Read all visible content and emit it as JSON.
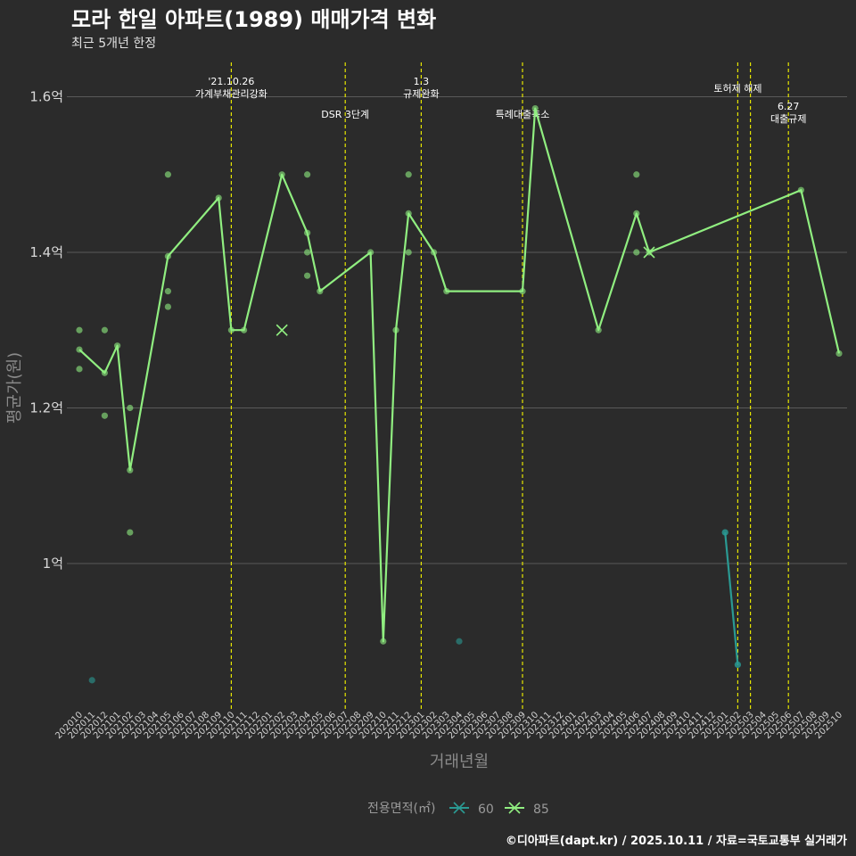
{
  "chart_data": {
    "type": "line",
    "title": "모라 한일 아파트(1989) 매매가격 변화",
    "subtitle": "최근 5개년 한정",
    "xlabel": "거래년월",
    "ylabel": "평균가(원)",
    "caption": "©디아파트(dapt.kr) / 2025.10.11 / 자료=국토교통부 실거래가",
    "ylim": [
      0.815,
      1.64
    ],
    "yticks": [
      {
        "value": 1.0,
        "label": "1억"
      },
      {
        "value": 1.2,
        "label": "1.2억"
      },
      {
        "value": 1.4,
        "label": "1.4억"
      },
      {
        "value": 1.6,
        "label": "1.6억"
      }
    ],
    "categories": [
      "202010",
      "202011",
      "202012",
      "202101",
      "202102",
      "202103",
      "202104",
      "202105",
      "202106",
      "202107",
      "202108",
      "202109",
      "202110",
      "202111",
      "202112",
      "202201",
      "202202",
      "202203",
      "202204",
      "202205",
      "202206",
      "202207",
      "202208",
      "202209",
      "202210",
      "202211",
      "202212",
      "202301",
      "202302",
      "202303",
      "202304",
      "202305",
      "202306",
      "202307",
      "202308",
      "202309",
      "202310",
      "202311",
      "202312",
      "202401",
      "202402",
      "202403",
      "202404",
      "202405",
      "202406",
      "202407",
      "202408",
      "202409",
      "202410",
      "202411",
      "202412",
      "202501",
      "202502",
      "202503",
      "202504",
      "202505",
      "202506",
      "202507",
      "202508",
      "202509",
      "202510"
    ],
    "legend": {
      "title": "전용면적(㎡)",
      "entries": [
        "60",
        "85"
      ]
    },
    "series": [
      {
        "name": "60",
        "color": "#2a9a93",
        "line": [
          [
            "202501",
            1.04
          ],
          [
            "202502",
            0.87
          ]
        ],
        "points": [
          [
            "202011",
            0.85
          ],
          [
            "202304",
            0.9
          ],
          [
            "202501",
            1.04
          ],
          [
            "202502",
            0.87
          ]
        ],
        "crosses": []
      },
      {
        "name": "85",
        "color": "#90ee80",
        "line": [
          [
            "202010",
            1.275
          ],
          [
            "202012",
            1.245
          ],
          [
            "202101",
            1.28
          ],
          [
            "202102",
            1.12
          ],
          [
            "202105",
            1.395
          ],
          [
            "202109",
            1.47
          ],
          [
            "202110",
            1.3
          ],
          [
            "202111",
            1.3
          ],
          [
            "202202",
            1.5
          ],
          [
            "202204",
            1.425
          ],
          [
            "202205",
            1.35
          ],
          [
            "202209",
            1.4
          ],
          [
            "202210",
            0.9
          ],
          [
            "202211",
            1.3
          ],
          [
            "202212",
            1.45
          ],
          [
            "202302",
            1.4
          ],
          [
            "202303",
            1.35
          ],
          [
            "202309",
            1.35
          ],
          [
            "202310",
            1.585
          ],
          [
            "202403",
            1.3
          ],
          [
            "202406",
            1.45
          ],
          [
            "202407",
            1.4
          ],
          [
            "202507",
            1.48
          ],
          [
            "202510",
            1.27
          ]
        ],
        "points": [
          [
            "202010",
            1.3
          ],
          [
            "202010",
            1.25
          ],
          [
            "202012",
            1.3
          ],
          [
            "202012",
            1.19
          ],
          [
            "202102",
            1.2
          ],
          [
            "202102",
            1.04
          ],
          [
            "202105",
            1.5
          ],
          [
            "202105",
            1.35
          ],
          [
            "202105",
            1.33
          ],
          [
            "202204",
            1.5
          ],
          [
            "202204",
            1.4
          ],
          [
            "202204",
            1.37
          ],
          [
            "202212",
            1.5
          ],
          [
            "202212",
            1.4
          ],
          [
            "202406",
            1.5
          ],
          [
            "202406",
            1.4
          ]
        ],
        "crosses": [
          [
            "202202",
            1.3
          ],
          [
            "202407",
            1.4
          ]
        ]
      }
    ],
    "events": [
      {
        "month": "202110",
        "lines": [
          "'21.10.26",
          "가계부채관리강화"
        ],
        "row": "high"
      },
      {
        "month": "202207",
        "lines": [
          "DSR 3단계"
        ],
        "row": "low"
      },
      {
        "month": "202301",
        "lines": [
          "1.3",
          "규제완화"
        ],
        "row": "high"
      },
      {
        "month": "202309",
        "lines": [
          "특례대출축소"
        ],
        "row": "low"
      },
      {
        "month": "202502",
        "lines": [
          "토허제 해제"
        ],
        "row": "mid"
      },
      {
        "month": "202503",
        "lines": [],
        "row": "mid"
      },
      {
        "month": "202506",
        "lines": [
          "6.27",
          "대출규제"
        ],
        "row": "lowpair"
      }
    ],
    "event_line_color": "#e6e600"
  }
}
